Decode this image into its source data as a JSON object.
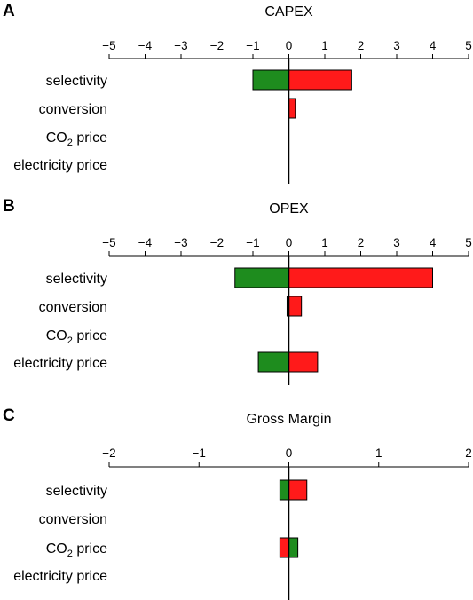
{
  "chart_data": [
    {
      "type": "bar",
      "panel": "A",
      "title": "CAPEX",
      "xlim": [
        -5,
        5
      ],
      "ticks": [
        "−5",
        "−4",
        "−3",
        "−2",
        "−1",
        "0",
        "1",
        "2",
        "3",
        "4",
        "5"
      ],
      "tick_values": [
        -5,
        -4,
        -3,
        -2,
        -1,
        0,
        1,
        2,
        3,
        4,
        5
      ],
      "categories": [
        {
          "label": "selectivity"
        },
        {
          "label": "conversion"
        },
        {
          "label": "CO",
          "sub": "2",
          "suffix": " price"
        },
        {
          "label": "electricity price"
        }
      ],
      "series": [
        {
          "color": "#1e8c1e",
          "values": [
            -1.0,
            0,
            0,
            0
          ]
        },
        {
          "color": "#ff1a1a",
          "values": [
            1.75,
            0.18,
            0,
            0
          ]
        }
      ]
    },
    {
      "type": "bar",
      "panel": "B",
      "title": "OPEX",
      "xlim": [
        -5,
        5
      ],
      "ticks": [
        "−5",
        "−4",
        "−3",
        "−2",
        "−1",
        "0",
        "1",
        "2",
        "3",
        "4",
        "5"
      ],
      "tick_values": [
        -5,
        -4,
        -3,
        -2,
        -1,
        0,
        1,
        2,
        3,
        4,
        5
      ],
      "categories": [
        {
          "label": "selectivity"
        },
        {
          "label": "conversion"
        },
        {
          "label": "CO",
          "sub": "2",
          "suffix": " price"
        },
        {
          "label": "electricity price"
        }
      ],
      "series": [
        {
          "color": "#1e8c1e",
          "values": [
            -1.5,
            -0.05,
            0,
            -0.85
          ]
        },
        {
          "color": "#ff1a1a",
          "values": [
            4.0,
            0.35,
            0,
            0.8
          ]
        }
      ]
    },
    {
      "type": "bar",
      "panel": "C",
      "title": "Gross Margin",
      "xlim": [
        -2,
        2
      ],
      "ticks": [
        "−2",
        "−1",
        "0",
        "1",
        "2"
      ],
      "tick_values": [
        -2,
        -1,
        0,
        1,
        2
      ],
      "categories": [
        {
          "label": "selectivity"
        },
        {
          "label": "conversion"
        },
        {
          "label": "CO",
          "sub": "2",
          "suffix": " price"
        },
        {
          "label": "electricity price"
        }
      ],
      "series": [
        {
          "color": "#1e8c1e",
          "values": [
            -0.1,
            0,
            0.1,
            0
          ]
        },
        {
          "color": "#ff1a1a",
          "values": [
            0.2,
            0,
            -0.1,
            0
          ]
        }
      ]
    }
  ]
}
